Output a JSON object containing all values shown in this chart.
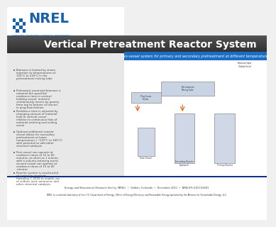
{
  "title": "Vertical Pretreatment Reactor System",
  "subtitle": "Two-vessel system for primary and secondary pretreatment at different temperatures",
  "nrel_text": "NREL",
  "nrel_sub": "NATIONAL RENEWABLE ENERGY LABORATORY",
  "bg_color": "#f0f0f0",
  "header_bg": "#2c2c2c",
  "header_gradient_start": "#4a4a4a",
  "header_gradient_end": "#1a1a1a",
  "title_color": "#ffffff",
  "subtitle_bar_color": "#1a6fc4",
  "subtitle_color": "#ffffff",
  "nrel_blue": "#1a5faa",
  "bullet_color": "#444444",
  "footer_color": "#333333",
  "blue_bar_color": "#003087",
  "bullets": [
    "Biomass is heated by steam injection to temperatures of 120°C to 210°C in the pretreatment mixing tube",
    "Preheated, premixed biomass is retained the specified residence time in vertical holding vessel; material continuously moves by gravity from top to bottom of reactor in plug-flow fashion",
    "Residence time is adjusted by changing amount of material held in vertical vessel relative to continuous flow of material entering and exiting vessel",
    "Optional additional reactor vessel allows for secondary pretreatment at lower temperatures (~120°C to 160°C) with potential to add other chemical catalysts",
    "First vessel can operate at residence times of 15 to 60 minutes, as short as 1 minute with a volume-reducing event; second vessel can operate at residence times of 15 to 60 minutes",
    "Reactor system is constructed of corrosion-resistant Hastelloy C-2000 to enable use of sulfuric acid, ammonia, and other chemical catalysts"
  ],
  "footer_line1": "Energy and Biosciences Research Facility (NREL)  •  Golden, Colorado  •  December 2011  •  NREL/FS-5100-52601",
  "footer_line2": "NREL is a national laboratory of the U.S. Department of Energy, Office of Energy Efficiency and Renewable Energy operated by the Alliance for Sustainable Energy, LLC."
}
